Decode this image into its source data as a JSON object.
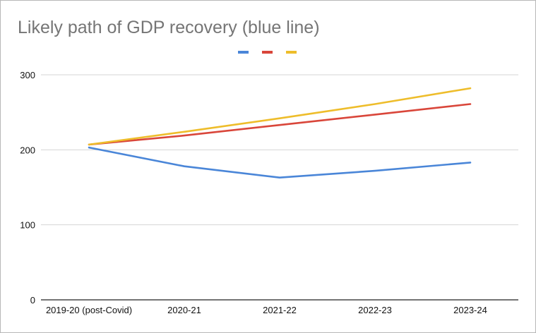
{
  "chart_data": {
    "type": "line",
    "title": "Likely path of GDP recovery (blue line)",
    "categories": [
      "2019-20 (post-Covid)",
      "2020-21",
      "2021-22",
      "2022-23",
      "2023-24"
    ],
    "series": [
      {
        "name": "",
        "color": "#4a86d8",
        "values": [
          203,
          178,
          163,
          172,
          183
        ]
      },
      {
        "name": "",
        "color": "#d9463a",
        "values": [
          207,
          219,
          233,
          247,
          261
        ]
      },
      {
        "name": "",
        "color": "#eebd2b",
        "values": [
          207,
          224,
          242,
          261,
          282
        ]
      }
    ],
    "ylim": [
      0,
      300
    ],
    "yticks": [
      "0",
      "100",
      "200",
      "300"
    ],
    "xlabel": "",
    "ylabel": "",
    "grid": true,
    "legend": "top-center"
  }
}
